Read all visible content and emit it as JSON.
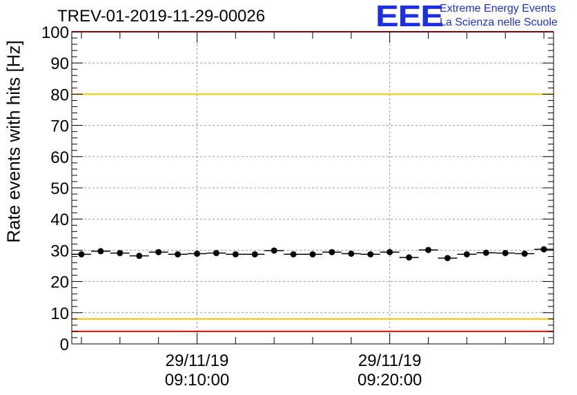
{
  "header": {
    "title": "TREV-01-2019-11-29-00026",
    "logo_text": "EEE",
    "logo_line1": "Extreme Energy Events",
    "logo_line2": "La Scienza nelle Scuole"
  },
  "colors": {
    "logo": "#1a2fe6",
    "limit_red": "#ff0000",
    "limit_yellow": "#f0c800",
    "grid": "#999999",
    "marker": "#000000"
  },
  "chart_data": {
    "type": "scatter",
    "title": "TREV-01-2019-11-29-00026",
    "xlabel": "",
    "ylabel": "Rate events with hits [Hz]",
    "ylim": [
      0,
      100
    ],
    "y_ticks": [
      0,
      10,
      20,
      30,
      40,
      50,
      60,
      70,
      80,
      90,
      100
    ],
    "x_minutes_range": [
      0,
      25
    ],
    "x_ticks": [
      {
        "minute": 6.5,
        "date": "29/11/19",
        "time": "09:10:00"
      },
      {
        "minute": 16.5,
        "date": "29/11/19",
        "time": "09:20:00"
      }
    ],
    "grid": true,
    "series": [
      {
        "name": "Rate events with hits",
        "x": [
          0.5,
          1.5,
          2.5,
          3.5,
          4.5,
          5.5,
          6.5,
          7.5,
          8.5,
          9.5,
          10.5,
          11.5,
          12.5,
          13.5,
          14.5,
          15.5,
          16.5,
          17.5,
          18.5,
          19.5,
          20.5,
          21.5,
          22.5,
          23.5,
          24.5
        ],
        "values": [
          28.7,
          29.7,
          29.1,
          28.2,
          29.4,
          28.7,
          28.9,
          29.1,
          28.7,
          28.7,
          29.9,
          28.7,
          28.7,
          29.4,
          28.9,
          28.7,
          29.4,
          27.7,
          30.1,
          27.5,
          28.7,
          29.2,
          29.1,
          28.9,
          30.3
        ]
      }
    ],
    "reference_lines": [
      {
        "value": 100,
        "color": "red"
      },
      {
        "value": 80,
        "color": "yellow"
      },
      {
        "value": 8,
        "color": "yellow"
      },
      {
        "value": 4,
        "color": "red"
      }
    ]
  }
}
